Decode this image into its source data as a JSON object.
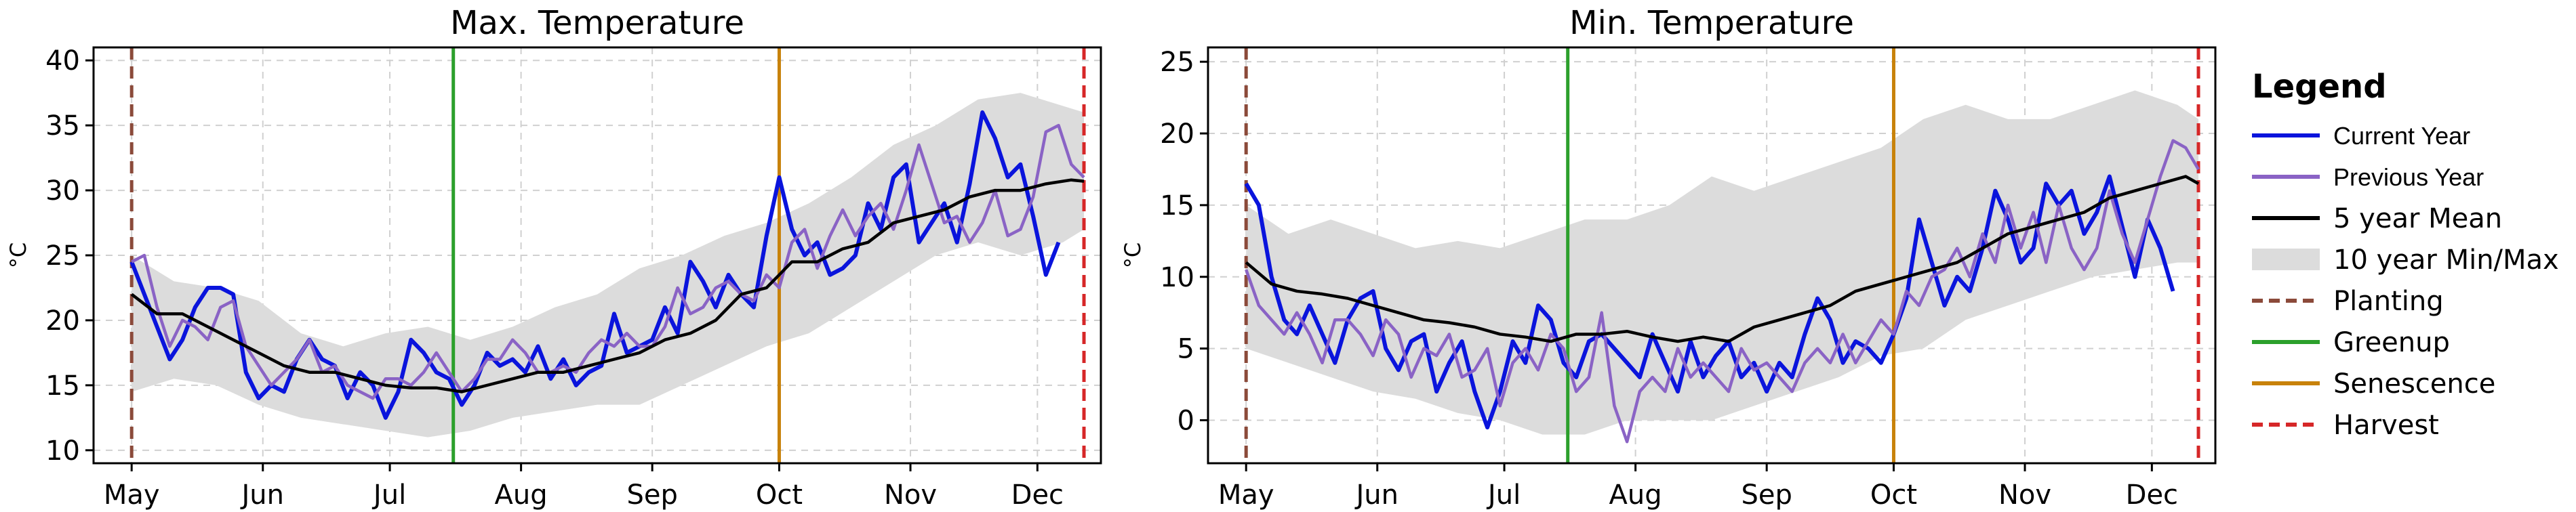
{
  "chart_data": [
    {
      "type": "line",
      "title": "Max. Temperature",
      "ylabel": "°C",
      "xticks": [
        "May",
        "Jun",
        "Jul",
        "Aug",
        "Sep",
        "Oct",
        "Nov",
        "Dec"
      ],
      "yticks": [
        10,
        15,
        20,
        25,
        30,
        35,
        40
      ],
      "ylim": [
        9,
        41
      ],
      "xlim": [
        -9,
        229
      ],
      "grid": true,
      "x_units": "days since May 1",
      "events": {
        "Planting": 0,
        "Greenup": 76,
        "Senescence": 153,
        "Harvest": 225
      },
      "band": {
        "name": "10 year Min/Max",
        "x": [
          0,
          10,
          20,
          30,
          40,
          50,
          60,
          70,
          80,
          90,
          100,
          110,
          120,
          130,
          140,
          150,
          160,
          170,
          180,
          190,
          200,
          210,
          220,
          225
        ],
        "lower": [
          14.5,
          15.5,
          15,
          13.5,
          12.5,
          12,
          11.5,
          11,
          11.5,
          12.5,
          13,
          13.5,
          13.5,
          15,
          16.5,
          18,
          19,
          21,
          23,
          25,
          26,
          25,
          26,
          27
        ],
        "upper": [
          25,
          23,
          22.5,
          21.5,
          19,
          18,
          19,
          19.5,
          18.5,
          19.5,
          21,
          22,
          24,
          25,
          26.5,
          27.5,
          29,
          31,
          33.5,
          35,
          37,
          37.5,
          36.5,
          36
        ]
      },
      "series": [
        {
          "name": "Current Year",
          "x": [
            0,
            3,
            6,
            9,
            12,
            15,
            18,
            21,
            24,
            27,
            30,
            33,
            36,
            39,
            42,
            45,
            48,
            51,
            54,
            57,
            60,
            63,
            66,
            69,
            72,
            75,
            78,
            81,
            84,
            87,
            90,
            93,
            96,
            99,
            102,
            105,
            108,
            111,
            114,
            117,
            120,
            123,
            126,
            129,
            132,
            135,
            138,
            141,
            144,
            147,
            150,
            153,
            156,
            159,
            162,
            165,
            168,
            171,
            174,
            177,
            180,
            183,
            186,
            189,
            192,
            195,
            198,
            201,
            204,
            207,
            210,
            213,
            216,
            219
          ],
          "y": [
            24.5,
            22,
            19.5,
            17,
            18.5,
            21,
            22.5,
            22.5,
            22,
            16,
            14,
            15,
            14.5,
            17,
            18.5,
            17,
            16.5,
            14,
            16,
            15,
            12.5,
            14.5,
            18.5,
            17.5,
            16,
            15.5,
            13.5,
            15,
            17.5,
            16.5,
            17,
            16,
            18,
            15.5,
            17,
            15,
            16,
            16.5,
            20.5,
            17.5,
            18,
            18.5,
            21,
            19,
            24.5,
            23,
            21,
            23.5,
            22,
            21,
            26.5,
            31,
            27,
            25,
            26,
            23.5,
            24,
            25,
            29,
            27,
            31,
            32,
            26,
            27.5,
            29,
            26,
            30.5,
            36,
            34,
            31,
            32,
            28,
            23.5,
            26
          ]
        },
        {
          "name": "Previous Year",
          "x": [
            0,
            3,
            6,
            9,
            12,
            15,
            18,
            21,
            24,
            27,
            30,
            33,
            36,
            39,
            42,
            45,
            48,
            51,
            54,
            57,
            60,
            63,
            66,
            69,
            72,
            75,
            78,
            81,
            84,
            87,
            90,
            93,
            96,
            99,
            102,
            105,
            108,
            111,
            114,
            117,
            120,
            123,
            126,
            129,
            132,
            135,
            138,
            141,
            144,
            147,
            150,
            153,
            156,
            159,
            162,
            165,
            168,
            171,
            174,
            177,
            180,
            183,
            186,
            189,
            192,
            195,
            198,
            201,
            204,
            207,
            210,
            213,
            216,
            219,
            222,
            225
          ],
          "y": [
            24.5,
            25,
            21,
            18,
            20,
            19.5,
            18.5,
            21,
            21.5,
            18,
            16.5,
            15,
            16,
            17,
            18.5,
            16,
            16.5,
            15,
            14.5,
            14,
            15.5,
            15.5,
            15,
            16,
            17.5,
            16,
            14.5,
            15.5,
            17,
            17,
            18.5,
            17.5,
            16,
            16,
            16.5,
            16,
            17.5,
            18.5,
            18,
            19,
            18,
            18,
            19.5,
            22.5,
            20.5,
            21,
            22.5,
            23,
            22,
            21.5,
            23.5,
            22.5,
            26,
            27,
            24,
            26.5,
            28.5,
            26.5,
            28,
            29,
            27,
            30,
            33.5,
            30.5,
            27.5,
            28,
            26,
            27.5,
            30,
            26.5,
            27,
            29.5,
            34.5,
            35,
            32,
            31
          ]
        },
        {
          "name": "5 year Mean",
          "x": [
            0,
            6,
            12,
            18,
            24,
            30,
            36,
            42,
            48,
            54,
            60,
            66,
            72,
            78,
            84,
            90,
            96,
            102,
            108,
            114,
            120,
            126,
            132,
            138,
            144,
            150,
            156,
            162,
            168,
            174,
            180,
            186,
            192,
            198,
            204,
            210,
            216,
            222,
            225
          ],
          "y": [
            22,
            20.5,
            20.5,
            19.5,
            18.5,
            17.5,
            16.5,
            16,
            16,
            15.5,
            15,
            14.8,
            14.8,
            14.5,
            15,
            15.5,
            16,
            16,
            16.5,
            17,
            17.5,
            18.5,
            19,
            20,
            22,
            22.5,
            24.5,
            24.5,
            25.5,
            26,
            27.5,
            28,
            28.5,
            29.5,
            30,
            30,
            30.5,
            30.8,
            30.7
          ]
        }
      ]
    },
    {
      "type": "line",
      "title": "Min. Temperature",
      "ylabel": "°C",
      "xticks": [
        "May",
        "Jun",
        "Jul",
        "Aug",
        "Sep",
        "Oct",
        "Nov",
        "Dec"
      ],
      "yticks": [
        0,
        5,
        10,
        15,
        20,
        25
      ],
      "ylim": [
        -3,
        26
      ],
      "xlim": [
        -9,
        229
      ],
      "grid": true,
      "x_units": "days since May 1",
      "events": {
        "Planting": 0,
        "Greenup": 76,
        "Senescence": 153,
        "Harvest": 225
      },
      "band": {
        "name": "10 year Min/Max",
        "x": [
          0,
          10,
          20,
          30,
          40,
          50,
          60,
          70,
          80,
          90,
          100,
          110,
          120,
          130,
          140,
          150,
          160,
          170,
          180,
          190,
          200,
          210,
          220,
          225
        ],
        "lower": [
          5,
          4,
          3,
          2,
          1.5,
          0.5,
          0,
          -1,
          -1,
          0,
          0,
          0,
          1,
          2,
          3,
          4.5,
          5,
          7,
          8,
          9,
          10,
          10.5,
          11,
          11
        ],
        "upper": [
          15,
          13,
          14,
          13,
          12,
          12.5,
          12,
          13,
          14,
          14,
          15,
          17,
          16,
          17,
          18,
          19,
          21,
          22,
          21,
          21,
          22,
          23,
          22,
          21
        ]
      },
      "series": [
        {
          "name": "Current Year",
          "x": [
            0,
            3,
            6,
            9,
            12,
            15,
            18,
            21,
            24,
            27,
            30,
            33,
            36,
            39,
            42,
            45,
            48,
            51,
            54,
            57,
            60,
            63,
            66,
            69,
            72,
            75,
            78,
            81,
            84,
            87,
            90,
            93,
            96,
            99,
            102,
            105,
            108,
            111,
            114,
            117,
            120,
            123,
            126,
            129,
            132,
            135,
            138,
            141,
            144,
            147,
            150,
            153,
            156,
            159,
            162,
            165,
            168,
            171,
            174,
            177,
            180,
            183,
            186,
            189,
            192,
            195,
            198,
            201,
            204,
            207,
            210,
            213,
            216,
            219
          ],
          "y": [
            16.5,
            15,
            10,
            7,
            6,
            8,
            6,
            4,
            7,
            8.5,
            9,
            5,
            3.5,
            5.5,
            6,
            2,
            4,
            5.5,
            2,
            -0.5,
            2,
            5.5,
            4,
            8,
            7,
            4,
            3,
            5.5,
            6,
            5,
            4,
            3,
            6,
            4,
            2,
            5.5,
            3,
            4.5,
            5.5,
            3,
            4,
            2,
            4,
            3,
            6,
            8.5,
            7,
            4,
            5.5,
            5,
            4,
            6,
            8.5,
            14,
            11,
            8,
            10,
            9,
            12,
            16,
            14,
            11,
            12,
            16.5,
            15,
            16,
            13,
            14.5,
            17,
            13.5,
            10,
            14,
            12,
            9
          ]
        },
        {
          "name": "Previous Year",
          "x": [
            0,
            3,
            6,
            9,
            12,
            15,
            18,
            21,
            24,
            27,
            30,
            33,
            36,
            39,
            42,
            45,
            48,
            51,
            54,
            57,
            60,
            63,
            66,
            69,
            72,
            75,
            78,
            81,
            84,
            87,
            90,
            93,
            96,
            99,
            102,
            105,
            108,
            111,
            114,
            117,
            120,
            123,
            126,
            129,
            132,
            135,
            138,
            141,
            144,
            147,
            150,
            153,
            156,
            159,
            162,
            165,
            168,
            171,
            174,
            177,
            180,
            183,
            186,
            189,
            192,
            195,
            198,
            201,
            204,
            207,
            210,
            213,
            216,
            219,
            222,
            225
          ],
          "y": [
            10.5,
            8,
            7,
            6,
            7.5,
            6,
            4,
            7,
            7,
            6,
            4.5,
            7,
            6,
            3,
            5,
            4.5,
            6,
            3,
            3.5,
            5,
            1,
            4,
            5,
            3.5,
            6,
            5,
            2,
            3,
            7.5,
            1,
            -1.5,
            2,
            3,
            2,
            5,
            3,
            4,
            3,
            2,
            5,
            3.5,
            4,
            3,
            2,
            4,
            5,
            4,
            6,
            4,
            5.5,
            7,
            6,
            9,
            8,
            10,
            10.5,
            12,
            10,
            13,
            11,
            15,
            12,
            14.5,
            11,
            15,
            12,
            10.5,
            12,
            16,
            13,
            11,
            14,
            17,
            19.5,
            19,
            17.5
          ]
        },
        {
          "name": "5 year Mean",
          "x": [
            0,
            6,
            12,
            18,
            24,
            30,
            36,
            42,
            48,
            54,
            60,
            66,
            72,
            78,
            84,
            90,
            96,
            102,
            108,
            114,
            120,
            126,
            132,
            138,
            144,
            150,
            156,
            162,
            168,
            174,
            180,
            186,
            192,
            198,
            204,
            210,
            216,
            222,
            225
          ],
          "y": [
            11,
            9.5,
            9,
            8.8,
            8.5,
            8,
            7.5,
            7,
            6.8,
            6.5,
            6,
            5.8,
            5.5,
            6,
            6,
            6.2,
            5.8,
            5.5,
            5.8,
            5.5,
            6.5,
            7,
            7.5,
            8,
            9,
            9.5,
            10,
            10.5,
            11,
            12,
            13,
            13.5,
            14,
            14.5,
            15.5,
            16,
            16.5,
            17,
            16.5
          ]
        }
      ]
    }
  ],
  "legend": {
    "title": "Legend",
    "items": [
      {
        "label": "Current Year",
        "kind": "line",
        "color": "#0a14dc",
        "dash": false
      },
      {
        "label": "Previous Year",
        "kind": "line",
        "color": "#8a63c5",
        "dash": false
      },
      {
        "label": "5 year Mean",
        "kind": "line",
        "color": "#000000",
        "dash": false
      },
      {
        "label": "10 year Min/Max",
        "kind": "band",
        "color": "#dcdcdc",
        "dash": false
      },
      {
        "label": "Planting",
        "kind": "line",
        "color": "#8b4a3a",
        "dash": true
      },
      {
        "label": "Greenup",
        "kind": "line",
        "color": "#2ca02c",
        "dash": false
      },
      {
        "label": "Senescence",
        "kind": "line",
        "color": "#c8820a",
        "dash": false
      },
      {
        "label": "Harvest",
        "kind": "line",
        "color": "#d62728",
        "dash": true
      }
    ]
  },
  "colors": {
    "current": "#0a14dc",
    "previous": "#8a63c5",
    "mean": "#000000",
    "band": "#dcdcdc",
    "planting": "#8b4a3a",
    "greenup": "#2ca02c",
    "senescence": "#c8820a",
    "harvest": "#d62728"
  }
}
